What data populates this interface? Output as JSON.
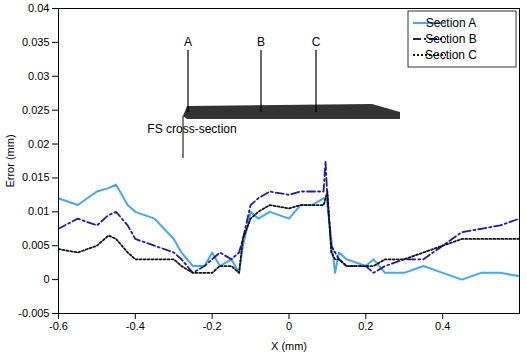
{
  "chart_data": {
    "type": "line",
    "x_label": "X (mm)",
    "y_label": "Error (mm)",
    "xlim": [
      -0.6,
      0.6
    ],
    "xticks": [
      -0.6,
      -0.4,
      -0.2,
      0,
      0.2,
      0.4
    ],
    "ylim": [
      -0.005,
      0.04
    ],
    "yticks": [
      -0.005,
      0,
      0.005,
      0.01,
      0.015,
      0.02,
      0.025,
      0.03,
      0.035,
      0.04
    ],
    "grid": false,
    "legend": "upper right",
    "annotations": [
      "A",
      "B",
      "C",
      "FS cross-section"
    ],
    "x": [
      -0.6,
      -0.55,
      -0.5,
      -0.47,
      -0.45,
      -0.42,
      -0.4,
      -0.35,
      -0.3,
      -0.28,
      -0.25,
      -0.22,
      -0.2,
      -0.18,
      -0.15,
      -0.13,
      -0.12,
      -0.1,
      -0.08,
      -0.05,
      0,
      0.03,
      0.06,
      0.09,
      0.095,
      0.1,
      0.11,
      0.12,
      0.13,
      0.15,
      0.2,
      0.22,
      0.25,
      0.3,
      0.35,
      0.4,
      0.45,
      0.5,
      0.55,
      0.6
    ],
    "series": [
      {
        "name": "Section A",
        "color": "#3fa9f5",
        "line_style": "solid",
        "values": [
          0.012,
          0.011,
          0.013,
          0.0135,
          0.014,
          0.011,
          0.01,
          0.009,
          0.006,
          0.004,
          0.002,
          0.002,
          0.004,
          0.002,
          0.003,
          0.001,
          0.005,
          0.01,
          0.009,
          0.01,
          0.009,
          0.011,
          0.011,
          0.012,
          0.012,
          0.011,
          0.006,
          0.001,
          0.004,
          0.003,
          0.002,
          0.003,
          0.001,
          0.001,
          0.002,
          0.001,
          0,
          0.001,
          0.001,
          0.0005
        ]
      },
      {
        "name": "Section B",
        "color": "#1c1ca8",
        "line_style": "dashdot",
        "values": [
          0.0075,
          0.009,
          0.008,
          0.0095,
          0.01,
          0.008,
          0.006,
          0.005,
          0.004,
          0.003,
          0.001,
          0.002,
          0.003,
          0.004,
          0.003,
          0.004,
          0.006,
          0.011,
          0.012,
          0.013,
          0.0125,
          0.013,
          0.013,
          0.013,
          0.0175,
          0.012,
          0.005,
          0.004,
          0.003,
          0.002,
          0.002,
          0.001,
          0.002,
          0.003,
          0.003,
          0.005,
          0.007,
          0.0075,
          0.008,
          0.009
        ]
      },
      {
        "name": "Section C",
        "color": "#111111",
        "line_style": "dotted",
        "values": [
          0.0045,
          0.004,
          0.005,
          0.0065,
          0.006,
          0.004,
          0.003,
          0.003,
          0.003,
          0.002,
          0.001,
          0.001,
          0.001,
          0.002,
          0.002,
          0.001,
          0.006,
          0.009,
          0.01,
          0.011,
          0.0105,
          0.011,
          0.011,
          0.011,
          0.012,
          0.013,
          0.004,
          0.003,
          0.003,
          0.002,
          0.002,
          0.002,
          0.003,
          0.003,
          0.004,
          0.005,
          0.006,
          0.006,
          0.006,
          0.006
        ]
      }
    ]
  }
}
